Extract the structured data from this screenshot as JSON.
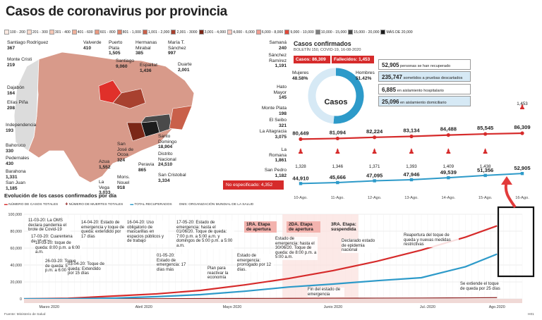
{
  "title": "Casos de coronavirus por provincia",
  "scale_legend": [
    {
      "label": "100 - 200",
      "color": "#fbe9e1"
    },
    {
      "label": "201 - 300",
      "color": "#f8d9cc"
    },
    {
      "label": "301 - 400",
      "color": "#f4c7b6"
    },
    {
      "label": "401 - 600",
      "color": "#efb19c"
    },
    {
      "label": "601 - 800",
      "color": "#e89b83"
    },
    {
      "label": "801 - 1,000",
      "color": "#df836b"
    },
    {
      "label": "1,001 - 2,000",
      "color": "#c9604a"
    },
    {
      "label": "2,001 - 3000",
      "color": "#a8412f"
    },
    {
      "label": "3,001 - 4,000",
      "color": "#7b2717"
    },
    {
      "label": "4,000 - 6,000",
      "color": "#f7c9c0"
    },
    {
      "label": "6,000 - 8,000",
      "color": "#f09e92"
    },
    {
      "label": "9,000 - 10,000",
      "color": "#e04a3b"
    },
    {
      "label": "10,000 - 15,000",
      "color": "#7f7f7f"
    },
    {
      "label": "15,000 - 20,000",
      "color": "#4a4a4a"
    },
    {
      "label": "MÁS DE 20,000",
      "color": "#1c1c1c"
    }
  ],
  "provinces": [
    {
      "name": "Santiago Rodríguez",
      "value": "367"
    },
    {
      "name": "Monte Cristi",
      "value": "219"
    },
    {
      "name": "Dajabón",
      "value": "164"
    },
    {
      "name": "Elías Piña",
      "value": "208"
    },
    {
      "name": "Independencia",
      "value": "193"
    },
    {
      "name": "Bahoruco",
      "value": "330"
    },
    {
      "name": "Pedernales",
      "value": "430"
    },
    {
      "name": "Barahona",
      "value": "1,331"
    },
    {
      "name": "San Juan",
      "value": "1,185"
    },
    {
      "name": "Valverde",
      "value": "410"
    },
    {
      "name": "Puerto Plata",
      "value": "1,505"
    },
    {
      "name": "Santiago",
      "value": "9,060"
    },
    {
      "name": "Hermanas Mirabal",
      "value": "385"
    },
    {
      "name": "María T. Sánchez",
      "value": "997"
    },
    {
      "name": "Espaillat",
      "value": "1,436"
    },
    {
      "name": "Duarte",
      "value": "2,001"
    },
    {
      "name": "Samaná",
      "value": "240"
    },
    {
      "name": "Sánchez Ramírez",
      "value": "1,191"
    },
    {
      "name": "Hato Mayor",
      "value": "145"
    },
    {
      "name": "Monte Plata",
      "value": "198"
    },
    {
      "name": "El Seibo",
      "value": "321"
    },
    {
      "name": "La Altagracia",
      "value": "3,075"
    },
    {
      "name": "La Romana",
      "value": "1,861"
    },
    {
      "name": "San Pedro",
      "value": "1,182"
    },
    {
      "name": "Santo Domingo",
      "value": "18,904"
    },
    {
      "name": "Distrito Nacional",
      "value": "24,510"
    },
    {
      "name": "San Cristobal",
      "value": "3,334"
    },
    {
      "name": "San José de Ocoa",
      "value": "324"
    },
    {
      "name": "Peravia",
      "value": "865"
    },
    {
      "name": "Azua",
      "value": "1,552"
    },
    {
      "name": "La Vega",
      "value": "3,033"
    },
    {
      "name": "Mons. Nouel",
      "value": "918"
    }
  ],
  "no_especificado": "No especificado: 4,352",
  "confirmed": {
    "title": "Casos confirmados",
    "subtitle": "BOLETÍN 150, COVID-19, 16-08-2020",
    "casos_label": "Casos: 86,309",
    "fallecidos_label": "Fallecidos: 1,453",
    "donut_center": "Casos",
    "mujeres_label": "Mujeres",
    "mujeres_pct": 48.58,
    "mujeres_text": "48.58%",
    "hombres_label": "Hombres",
    "hombres_pct": 51.42,
    "hombres_text": "51.42%",
    "stats": [
      {
        "value": "52,905",
        "text": "personas se han recuperado"
      },
      {
        "value": "235,747",
        "text": "sometidos a pruebas descartados"
      },
      {
        "value": "6,885",
        "text": "en aislamiento hospitalario"
      },
      {
        "value": "25,096",
        "text": "en aislamiento domiciliario"
      }
    ]
  },
  "chart_data": [
    {
      "type": "line",
      "categories": [
        "10-Ago.",
        "11-Ago.",
        "12-Ago.",
        "13-Ago.",
        "14-Ago.",
        "15-Ago.",
        "16-Ago."
      ],
      "series": [
        {
          "values": [
            80449,
            81094,
            82224,
            83134,
            84488,
            85545,
            86309
          ],
          "labels": [
            "80,449",
            "81,094",
            "82,224",
            "83,134",
            "84,488",
            "85,545",
            "86,309"
          ],
          "color": "#d62b2b"
        },
        {
          "values": [
            1328,
            1346,
            1371,
            1393,
            1409,
            1438,
            1453
          ],
          "labels": [
            "1,328",
            "1,346",
            "1,371",
            "1,393",
            "1,409",
            "1,438",
            "1,453"
          ],
          "color": "#d62b2b"
        },
        {
          "values": [
            44910,
            45666,
            47095,
            47946,
            49539,
            51356,
            52905
          ],
          "labels": [
            "44,910",
            "45,666",
            "47,095",
            "47,946",
            "49,539",
            "51,356",
            "52,905"
          ],
          "color": "#2d9ac9"
        }
      ]
    },
    {
      "type": "line",
      "title": "Evolución de los casos confirmados por día",
      "legend": [
        "NÚMERO DE CASOS TOTALES",
        "NÚMERO DE MUERTES TOTALES",
        "TOTAL RECUPERADOS",
        "OMS: ORGANIZACIÓN MUNDIAL DE LA SALUD"
      ],
      "ylim": [
        0,
        100000
      ],
      "yticks": [
        "100,000",
        "80,000",
        "60,000",
        "40,000",
        "20,000",
        "0"
      ],
      "months": [
        "Marzo 2020",
        "Abril 2020",
        "Mayo 2020",
        "Junio 2020",
        "Jul.-2020",
        "Ago.2020"
      ],
      "x_day_index": [
        0,
        14,
        28,
        42,
        56,
        70,
        84,
        98,
        112,
        126,
        140,
        150
      ],
      "series": [
        {
          "name": "NÚMERO DE CASOS TOTALES",
          "color": "#d62b2b",
          "values": [
            1,
            600,
            3200,
            5900,
            10000,
            16500,
            24100,
            33400,
            44500,
            57700,
            73000,
            86309
          ]
        },
        {
          "name": "NÚMERO DE MUERTES TOTALES",
          "color": "#8b1a1a",
          "values": [
            0,
            30,
            180,
            280,
            390,
            500,
            650,
            790,
            880,
            1000,
            1200,
            1453
          ]
        },
        {
          "name": "TOTAL RECUPERADOS",
          "color": "#2d9ac9",
          "values": [
            0,
            50,
            800,
            2600,
            5000,
            9000,
            14000,
            17500,
            21500,
            25000,
            38000,
            52905
          ]
        }
      ]
    }
  ],
  "annotations": [
    "11-03-20: La OMS declara pandemia el brote de Covid-19",
    "17-03-20: Cuarentena de 15 días",
    "18-03-20: toque de queda: 8:00 p.m. a 6:00 a.m.",
    "26-03-20: Toque de queda: 5:00 p.m. a 6:00 a.m.",
    "03-04-20: Toque de queda: Extendido por 15 días",
    "14-04-20: Estado de emergencia y toque de queda: extendido por 17 días",
    "16-04-20: Uso obligatorio de mascarillas en espacios públicos y de trabajo",
    "01-05-20: Estado de emergencia: 17 días más",
    "17-05-20: Estado de emergencia: hasta el 01/06/20. Toque de queda: 7:00 p.m. a 5:00 a.m. y domingos de 5:00 p.m. a 5:00 a.m.",
    "Plan para reactivar la economía",
    "Estado de emergencia: prorrogado por 12 días.",
    "Estado de emergencia: hasta el 30/06/20. Toque de queda: de 8:00 p.m. a 5:00 a.m.",
    "Fin del estado de emergencia",
    "Declarado estado de epidemia nacional",
    "Reapertura del toque de queda y nuevas medidas restrictivas",
    "Se extiende el toque de queda por 25 días"
  ],
  "etapas": [
    "1RA. Etapa de apertura",
    "2DA. Etapa de apertura",
    "3RA. Etapa: suspendida"
  ],
  "source": "Fuente: Ministerio de Salud",
  "page": "H01"
}
